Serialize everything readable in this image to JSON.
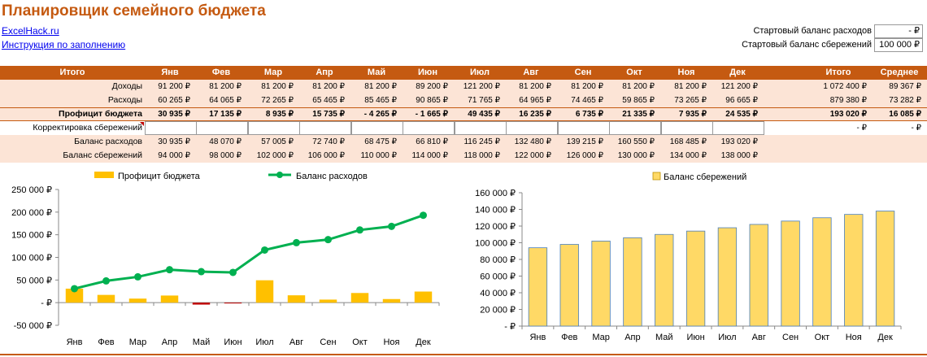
{
  "header": {
    "title": "Планировщик семейного бюджета",
    "link1": "ExcelHack.ru",
    "link2": "Инструкция по заполнению"
  },
  "start": {
    "expenses_label": "Стартовый баланс расходов",
    "expenses_value": "-   ₽",
    "savings_label": "Стартовый баланс сбережений",
    "savings_value": "100 000 ₽"
  },
  "table": {
    "corner": "Итого",
    "months": [
      "Янв",
      "Фев",
      "Мар",
      "Апр",
      "Май",
      "Июн",
      "Июл",
      "Авг",
      "Сен",
      "Окт",
      "Ноя",
      "Дек"
    ],
    "total_label": "Итого",
    "avg_label": "Среднее",
    "rows": [
      {
        "label": "Доходы",
        "values": [
          "91 200 ₽",
          "81 200 ₽",
          "81 200 ₽",
          "81 200 ₽",
          "81 200 ₽",
          "89 200 ₽",
          "121 200 ₽",
          "81 200 ₽",
          "81 200 ₽",
          "81 200 ₽",
          "81 200 ₽",
          "121 200 ₽"
        ],
        "total": "1 072 400 ₽",
        "avg": "89 367 ₽"
      },
      {
        "label": "Расходы",
        "values": [
          "60 265 ₽",
          "64 065 ₽",
          "72 265 ₽",
          "65 465 ₽",
          "85 465 ₽",
          "90 865 ₽",
          "71 765 ₽",
          "64 965 ₽",
          "74 465 ₽",
          "59 865 ₽",
          "73 265 ₽",
          "96 665 ₽"
        ],
        "total": "879 380 ₽",
        "avg": "73 282 ₽"
      },
      {
        "label": "Профицит бюджета",
        "values": [
          "30 935 ₽",
          "17 135 ₽",
          "8 935 ₽",
          "15 735 ₽",
          "-     4 265 ₽",
          "-     1 665 ₽",
          "49 435 ₽",
          "16 235 ₽",
          "6 735 ₽",
          "21 335 ₽",
          "7 935 ₽",
          "24 535 ₽"
        ],
        "total": "193 020 ₽",
        "avg": "16 085 ₽"
      },
      {
        "label": "Корректировка сбережений",
        "values": [
          "",
          "",
          "",
          "",
          "",
          "",
          "",
          "",
          "",
          "",
          "",
          ""
        ],
        "total": "-   ₽",
        "avg": "-   ₽"
      },
      {
        "label": "Баланс расходов",
        "values": [
          "30 935 ₽",
          "48 070 ₽",
          "57 005 ₽",
          "72 740 ₽",
          "68 475 ₽",
          "66 810 ₽",
          "116 245 ₽",
          "132 480 ₽",
          "139 215 ₽",
          "160 550 ₽",
          "168 485 ₽",
          "193 020 ₽"
        ],
        "total": "",
        "avg": ""
      },
      {
        "label": "Баланс сбережений",
        "values": [
          "94 000 ₽",
          "98 000 ₽",
          "102 000 ₽",
          "106 000 ₽",
          "110 000 ₽",
          "114 000 ₽",
          "118 000 ₽",
          "122 000 ₽",
          "126 000 ₽",
          "130 000 ₽",
          "134 000 ₽",
          "138 000 ₽"
        ],
        "total": "",
        "avg": ""
      }
    ]
  },
  "chart_data": [
    {
      "type": "bar+line",
      "categories": [
        "Янв",
        "Фев",
        "Мар",
        "Апр",
        "Май",
        "Июн",
        "Июл",
        "Авг",
        "Сен",
        "Окт",
        "Ноя",
        "Дек"
      ],
      "series": [
        {
          "name": "Профицит бюджета",
          "kind": "bar",
          "color": "#ffc000",
          "values": [
            30935,
            17135,
            8935,
            15735,
            -4265,
            -1665,
            49435,
            16235,
            6735,
            21335,
            7935,
            24535
          ]
        },
        {
          "name": "Баланс расходов",
          "kind": "line",
          "color": "#00b050",
          "values": [
            30935,
            48070,
            57005,
            72740,
            68475,
            66810,
            116245,
            132480,
            139215,
            160550,
            168485,
            193020
          ]
        }
      ],
      "ylim": [
        -50000,
        250000
      ],
      "yticks": [
        -50000,
        0,
        50000,
        100000,
        150000,
        200000,
        250000
      ],
      "ytick_labels": [
        "-50 000 ₽",
        "-   ₽",
        "50 000 ₽",
        "100 000 ₽",
        "150 000 ₽",
        "200 000 ₽",
        "250 000 ₽"
      ],
      "legend": "top",
      "grid": false
    },
    {
      "type": "bar",
      "categories": [
        "Янв",
        "Фев",
        "Мар",
        "Апр",
        "Май",
        "Июн",
        "Июл",
        "Авг",
        "Сен",
        "Окт",
        "Ноя",
        "Дек"
      ],
      "series": [
        {
          "name": "Баланс сбережений",
          "color": "#ffd966",
          "values": [
            94000,
            98000,
            102000,
            106000,
            110000,
            114000,
            118000,
            122000,
            126000,
            130000,
            134000,
            138000
          ]
        }
      ],
      "ylim": [
        0,
        160000
      ],
      "yticks": [
        0,
        20000,
        40000,
        60000,
        80000,
        100000,
        120000,
        140000,
        160000
      ],
      "ytick_labels": [
        "-   ₽",
        "20 000 ₽",
        "40 000 ₽",
        "60 000 ₽",
        "80 000 ₽",
        "100 000 ₽",
        "120 000 ₽",
        "140 000 ₽",
        "160 000 ₽"
      ],
      "legend": "top",
      "grid": false
    }
  ]
}
